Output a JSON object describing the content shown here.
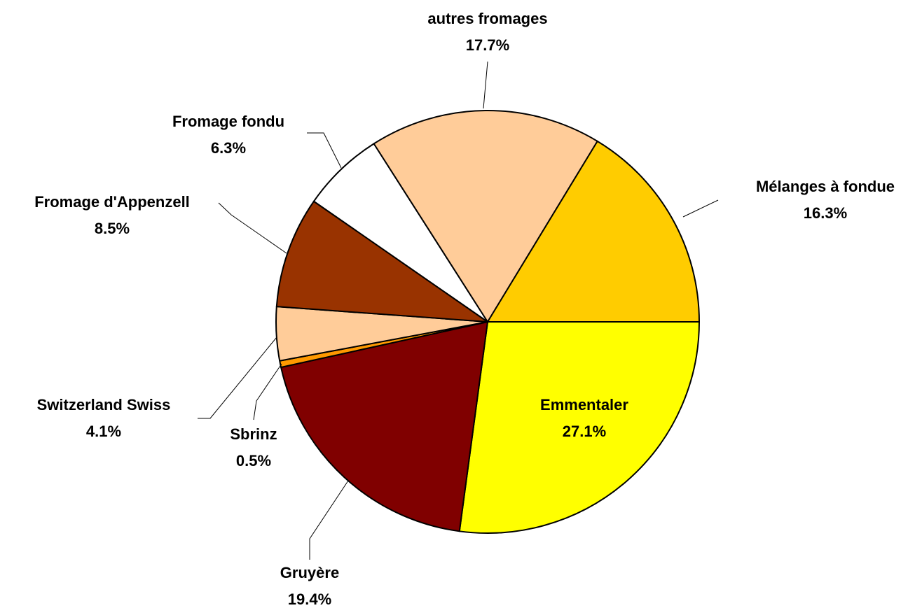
{
  "chart_data": {
    "type": "pie",
    "categories": [
      "Emmentaler",
      "Gruyère",
      "Sbrinz",
      "Switzerland Swiss",
      "Fromage d'Appenzell",
      "Fromage fondu",
      "autres fromages",
      "Mélanges à fondue"
    ],
    "values": [
      27.1,
      19.4,
      0.5,
      4.1,
      8.5,
      6.3,
      17.7,
      16.3
    ],
    "value_labels": [
      "27.1%",
      "19.4%",
      "0.5%",
      "4.1%",
      "8.5%",
      "6.3%",
      "17.7%",
      "16.3%"
    ],
    "colors": [
      "#ffff00",
      "#800000",
      "#ff9900",
      "#ffcc99",
      "#993300",
      "#ffffff",
      "#ffcc99",
      "#ffcc00"
    ]
  }
}
